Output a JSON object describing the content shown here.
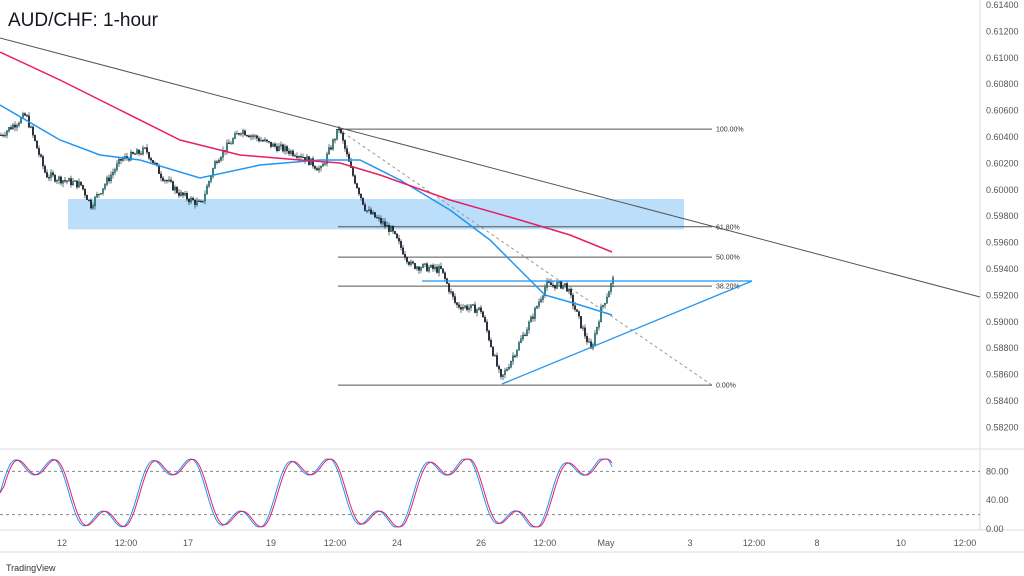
{
  "title": "AUD/CHF: 1-hour",
  "brand": "TradingView",
  "colors": {
    "up": "#26a69a",
    "down": "#131722",
    "ma_fast": "#2196f3",
    "ma_slow": "#e91e63",
    "zone": "#bbdefb",
    "stoch_k": "#2196f3",
    "stoch_d": "#e91e63"
  },
  "chart_data": {
    "type": "candlestick",
    "price_ticks": [
      "0.61400",
      "0.61200",
      "0.61000",
      "0.60800",
      "0.60600",
      "0.60400",
      "0.60200",
      "0.60000",
      "0.59800",
      "0.59600",
      "0.59400",
      "0.59200",
      "0.59000",
      "0.58800",
      "0.58600",
      "0.58400",
      "0.58200"
    ],
    "ylim": [
      0.5815,
      0.6142
    ],
    "time_ticks": [
      "12",
      "12:00",
      "17",
      "19",
      "12:00",
      "24",
      "26",
      "12:00",
      "May",
      "3",
      "12:00",
      "8",
      "10",
      "12:00"
    ],
    "approx_close_path": {
      "bar": [
        0,
        25,
        45,
        80,
        90,
        120,
        145,
        160,
        180,
        200,
        215,
        240,
        270,
        300,
        320,
        338,
        350,
        365,
        390,
        410,
        440,
        455,
        480,
        500,
        515,
        530,
        545,
        565,
        580,
        590,
        600,
        612
      ],
      "price": [
        0.60415,
        0.60567,
        0.60112,
        0.60036,
        0.59885,
        0.60226,
        0.60302,
        0.60112,
        0.59961,
        0.59885,
        0.60226,
        0.60453,
        0.60339,
        0.60264,
        0.6015,
        0.60468,
        0.6015,
        0.59847,
        0.59695,
        0.5943,
        0.59392,
        0.59127,
        0.59089,
        0.58559,
        0.58786,
        0.59014,
        0.59279,
        0.59279,
        0.58976,
        0.58786,
        0.59089,
        0.59317
      ]
    },
    "fib_levels": [
      {
        "label": "100.00%",
        "price": 0.6046
      },
      {
        "label": "61.80%",
        "price": 0.5972
      },
      {
        "label": "50.00%",
        "price": 0.5949
      },
      {
        "label": "38.20%",
        "price": 0.5927
      },
      {
        "label": "0.00%",
        "price": 0.5852
      }
    ],
    "support_zone": [
      0.597,
      0.5993
    ],
    "oscillator": {
      "ticks": [
        "80.00",
        "40.00",
        "0.00"
      ],
      "levels": [
        80,
        20
      ]
    }
  }
}
